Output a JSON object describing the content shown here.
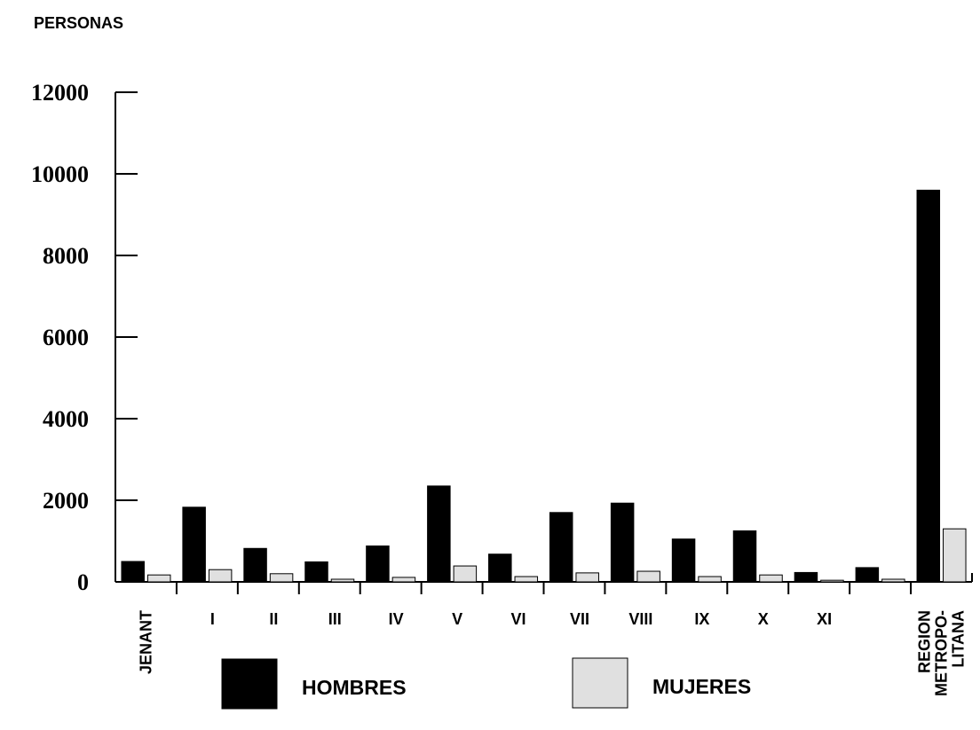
{
  "chart_data": {
    "type": "bar",
    "y_label": "PERSONAS",
    "categories": [
      "JENANT",
      "I",
      "II",
      "III",
      "IV",
      "V",
      "VI",
      "VII",
      "VIII",
      "IX",
      "X",
      "XI",
      null,
      "REGION\nMETROPO-\nLITANA"
    ],
    "series": [
      {
        "name": "HOMBRES",
        "color": "#000000",
        "values": [
          500,
          1830,
          820,
          490,
          880,
          2350,
          680,
          1700,
          1930,
          1050,
          1250,
          230,
          350,
          9600
        ]
      },
      {
        "name": "MUJERES",
        "color": "#e0e0e0",
        "values": [
          170,
          300,
          200,
          65,
          110,
          390,
          130,
          220,
          260,
          130,
          170,
          40,
          65,
          1300
        ]
      }
    ],
    "ylim": [
      0,
      12000
    ],
    "yticks": [
      0,
      2000,
      4000,
      6000,
      8000,
      10000,
      12000
    ],
    "grid": false
  }
}
